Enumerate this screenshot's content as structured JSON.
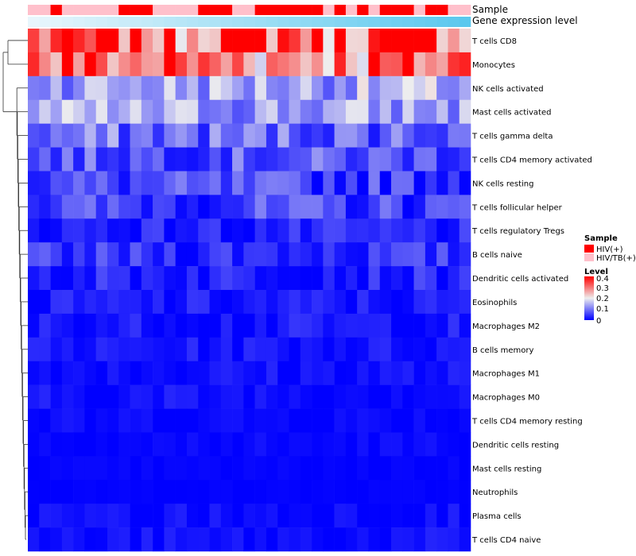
{
  "chart_data": {
    "type": "heatmap",
    "annotations": {
      "sample_label": "Sample",
      "expression_label": "Gene expression level"
    },
    "rows": [
      "T cells CD8",
      "Monocytes",
      "NK cells activated",
      "Mast cells activated",
      "T cells gamma delta",
      "T cells CD4 memory activated",
      "NK cells resting",
      "T cells follicular helper",
      "T cells regulatory  Tregs",
      "B cells naive",
      "Dendritic cells activated",
      "Eosinophils",
      "Macrophages M2",
      "B cells memory",
      "Macrophages M1",
      "Macrophages M0",
      "T cells CD4 memory resting",
      "Dendritic cells resting",
      "Mast cells resting",
      "Neutrophils",
      "Plasma cells",
      "T cells CD4 naive"
    ],
    "n_samples": 39,
    "sample_groups": [
      1,
      1,
      0,
      1,
      1,
      1,
      1,
      1,
      0,
      0,
      0,
      1,
      1,
      1,
      1,
      0,
      0,
      0,
      1,
      1,
      0,
      0,
      0,
      0,
      0,
      0,
      1,
      0,
      1,
      0,
      1,
      0,
      0,
      0,
      1,
      0,
      0,
      1,
      1
    ],
    "legend": {
      "sample_title": "Sample",
      "sample_entries": [
        {
          "label": "HIV(+)",
          "color": "#ff0000"
        },
        {
          "label": "HIV/TB(+)",
          "color": "#ffc0cb"
        }
      ],
      "level_title": "Level",
      "level_ticks": [
        "0.4",
        "0.3",
        "0.2",
        "0.1",
        "0"
      ],
      "level_range": [
        0,
        0.45
      ]
    },
    "colors": {
      "low": "#0000ff",
      "mid": "#eeeeee",
      "high": "#ff0000",
      "expr_low": "#e8f6fc",
      "expr_high": "#5bc8ee"
    },
    "row_means": [
      0.36,
      0.36,
      0.16,
      0.15,
      0.1,
      0.08,
      0.06,
      0.06,
      0.03,
      0.045,
      0.035,
      0.02,
      0.02,
      0.02,
      0.015,
      0.015,
      0.008,
      0.006,
      0.003,
      0.002,
      0.01,
      0.01
    ],
    "row_spread": [
      0.1,
      0.1,
      0.05,
      0.05,
      0.05,
      0.04,
      0.04,
      0.04,
      0.025,
      0.03,
      0.025,
      0.02,
      0.02,
      0.015,
      0.015,
      0.015,
      0.01,
      0.01,
      0.004,
      0.002,
      0.015,
      0.015
    ]
  }
}
